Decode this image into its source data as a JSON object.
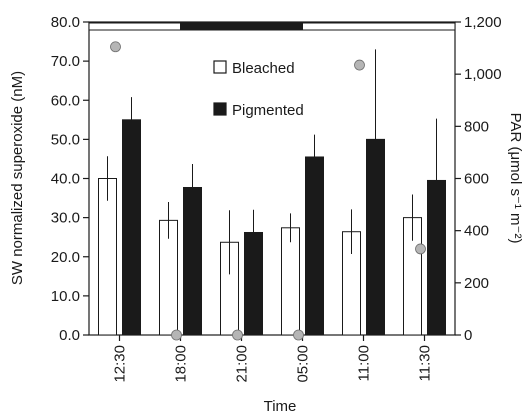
{
  "chart_data": {
    "type": "bar",
    "categories": [
      "12:30",
      "18:00",
      "21:00",
      "05:00",
      "11:00",
      "11:30"
    ],
    "series": [
      {
        "name": "Bleached",
        "values": [
          40.0,
          29.3,
          23.7,
          27.4,
          26.4,
          30.0
        ],
        "errors": [
          5.7,
          4.7,
          8.2,
          3.7,
          5.7,
          5.9
        ],
        "color": "#ffffff"
      },
      {
        "name": "Pigmented",
        "values": [
          55.0,
          37.7,
          26.2,
          45.5,
          50.0,
          39.5
        ],
        "errors": [
          5.8,
          6.0,
          5.8,
          5.7,
          23.0,
          15.8
        ],
        "color": "#1a1a1a"
      }
    ],
    "par": {
      "values": [
        1105,
        0,
        0,
        0,
        1035,
        330
      ],
      "color": "#b5b5b5"
    },
    "time_bar": {
      "segments": [
        {
          "from": "12:30",
          "to": "18:00",
          "state": "light"
        },
        {
          "from": "18:00",
          "to": "05:00",
          "state": "dark"
        },
        {
          "from": "05:00",
          "to": "11:30",
          "state": "light"
        }
      ],
      "colors": {
        "light": "#ffffff",
        "dark": "#1a1a1a"
      }
    },
    "xlabel": "Time",
    "ylabel": "SW normalized superoxide (nM)",
    "ylabel_right": "PAR (μmol s⁻¹ m⁻²)",
    "ylim": [
      0,
      80
    ],
    "ylim_right": [
      0,
      1200
    ],
    "yticks": [
      "0.0",
      "10.0",
      "20.0",
      "30.0",
      "40.0",
      "50.0",
      "60.0",
      "70.0",
      "80.0"
    ],
    "yticks_right": [
      "0",
      "200",
      "400",
      "600",
      "800",
      "1,000",
      "1,200"
    ],
    "grid": false,
    "legend_position": "top-center"
  }
}
